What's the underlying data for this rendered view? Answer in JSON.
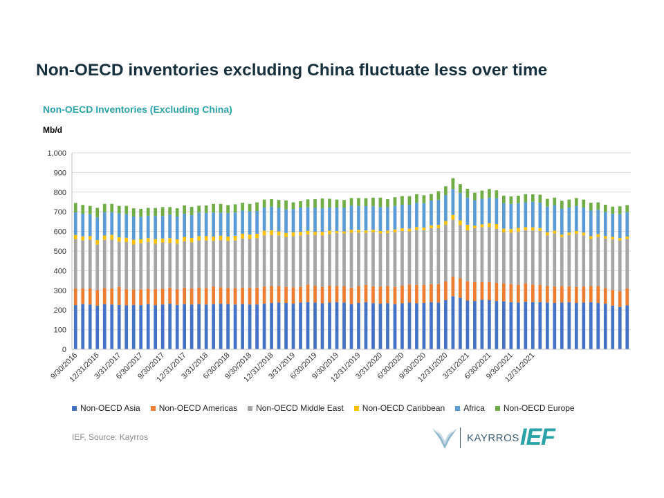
{
  "slide": {
    "title": "Non-OECD inventories excluding China fluctuate less over time",
    "source": "IEF, Source: Kayrros",
    "logos": {
      "kayrros": "KAYRROS",
      "ief": "IEF"
    }
  },
  "chart_data": {
    "type": "bar",
    "stacked": true,
    "title": "Non-OECD Inventories (Excluding China)",
    "ylabel": "Mb/d",
    "xlabel": "",
    "ylim": [
      0,
      1000
    ],
    "yticks": [
      0,
      100,
      200,
      300,
      400,
      500,
      600,
      700,
      800,
      900,
      1000
    ],
    "ytick_labels": [
      "0",
      "100",
      "200",
      "300",
      "400",
      "500",
      "600",
      "700",
      "800",
      "900",
      "1,000"
    ],
    "grid": true,
    "legend_position": "bottom",
    "x_tick_labels": [
      "9/30/2016",
      "12/31/2016",
      "3/31/2017",
      "6/30/2017",
      "9/30/2017",
      "12/31/2017",
      "3/31/2018",
      "6/30/2018",
      "9/30/2018",
      "12/31/2018",
      "3/31/2019",
      "6/30/2019",
      "9/30/2019",
      "12/31/2019",
      "3/31/2020",
      "6/30/2020",
      "9/30/2020",
      "12/31/2020",
      "3/31/2021",
      "6/30/2021",
      "9/30/2021",
      "12/31/2021"
    ],
    "bars_per_label": 3,
    "series": [
      {
        "name": "Non-OECD Asia",
        "color": "#4472c4",
        "values": [
          225,
          230,
          228,
          222,
          230,
          228,
          226,
          224,
          226,
          225,
          230,
          225,
          228,
          232,
          226,
          230,
          228,
          230,
          228,
          230,
          232,
          230,
          228,
          230,
          228,
          228,
          232,
          236,
          238,
          236,
          232,
          238,
          240,
          238,
          234,
          238,
          240,
          238,
          230,
          236,
          240,
          235,
          232,
          234,
          230,
          234,
          238,
          234,
          236,
          240,
          238,
          250,
          270,
          262,
          248,
          246,
          252,
          250,
          246,
          244,
          240,
          238,
          242,
          240,
          240,
          238,
          236,
          238,
          240,
          236,
          238,
          240,
          236,
          232,
          222,
          216,
          224
        ]
      },
      {
        "name": "Non-OECD Americas",
        "color": "#ed7d31",
        "values": [
          85,
          80,
          82,
          80,
          82,
          82,
          92,
          82,
          78,
          80,
          78,
          82,
          80,
          82,
          80,
          84,
          82,
          84,
          84,
          90,
          84,
          82,
          84,
          84,
          86,
          86,
          88,
          86,
          84,
          82,
          84,
          80,
          90,
          86,
          84,
          86,
          82,
          84,
          84,
          86,
          88,
          86,
          88,
          88,
          88,
          90,
          92,
          94,
          92,
          92,
          94,
          95,
          100,
          100,
          98,
          96,
          90,
          92,
          92,
          92,
          92,
          90,
          94,
          90,
          88,
          84,
          84,
          84,
          80,
          82,
          82,
          82,
          86,
          80,
          80,
          80,
          86
        ]
      },
      {
        "name": "Non-OECD Middle East",
        "color": "#a5a5a5",
        "values": [
          250,
          245,
          248,
          232,
          245,
          248,
          230,
          240,
          230,
          235,
          238,
          230,
          236,
          228,
          232,
          236,
          235,
          240,
          242,
          232,
          240,
          240,
          242,
          250,
          248,
          252,
          260,
          260,
          258,
          254,
          260,
          262,
          255,
          258,
          262,
          262,
          270,
          268,
          280,
          272,
          265,
          275,
          270,
          270,
          278,
          278,
          270,
          280,
          278,
          285,
          285,
          290,
          290,
          270,
          260,
          275,
          280,
          280,
          275,
          260,
          262,
          270,
          270,
          275,
          275,
          258,
          270,
          248,
          262,
          270,
          260,
          240,
          250,
          252,
          258,
          258,
          252
        ]
      },
      {
        "name": "Non-OECD Caribbean",
        "color": "#ffc000",
        "values": [
          22,
          20,
          18,
          22,
          22,
          25,
          22,
          22,
          24,
          20,
          20,
          24,
          20,
          24,
          22,
          22,
          22,
          22,
          22,
          22,
          22,
          22,
          24,
          24,
          22,
          22,
          24,
          24,
          20,
          20,
          20,
          18,
          18,
          16,
          18,
          18,
          10,
          10,
          14,
          14,
          12,
          12,
          12,
          12,
          14,
          14,
          14,
          14,
          14,
          14,
          16,
          18,
          24,
          24,
          28,
          12,
          14,
          20,
          24,
          18,
          18,
          20,
          16,
          16,
          14,
          16,
          14,
          14,
          12,
          14,
          14,
          14,
          14,
          12,
          12,
          12,
          12
        ]
      },
      {
        "name": "Africa",
        "color": "#5b9bd5",
        "values": [
          115,
          115,
          112,
          116,
          118,
          115,
          122,
          120,
          118,
          115,
          114,
          118,
          115,
          120,
          116,
          118,
          116,
          120,
          118,
          122,
          118,
          120,
          118,
          118,
          118,
          116,
          118,
          120,
          120,
          120,
          118,
          124,
          120,
          122,
          120,
          118,
          120,
          120,
          124,
          122,
          124,
          120,
          122,
          120,
          120,
          120,
          122,
          124,
          124,
          126,
          128,
          132,
          132,
          140,
          138,
          130,
          130,
          130,
          132,
          130,
          128,
          126,
          126,
          130,
          130,
          130,
          130,
          132,
          128,
          128,
          128,
          130,
          124,
          122,
          118,
          122,
          124
        ]
      },
      {
        "name": "Non-OECD Europe",
        "color": "#70ad47",
        "values": [
          48,
          45,
          42,
          48,
          43,
          42,
          38,
          42,
          42,
          40,
          40,
          40,
          45,
          38,
          42,
          42,
          42,
          35,
          38,
          44,
          44,
          40,
          42,
          40,
          38,
          44,
          40,
          38,
          40,
          46,
          34,
          32,
          40,
          44,
          50,
          44,
          40,
          40,
          38,
          40,
          40,
          44,
          48,
          40,
          44,
          44,
          44,
          44,
          40,
          34,
          44,
          45,
          55,
          45,
          45,
          38,
          42,
          44,
          40,
          38,
          38,
          38,
          42,
          38,
          40,
          40,
          38,
          40,
          40,
          40,
          40,
          40,
          38,
          38,
          36,
          40,
          36
        ]
      }
    ]
  }
}
